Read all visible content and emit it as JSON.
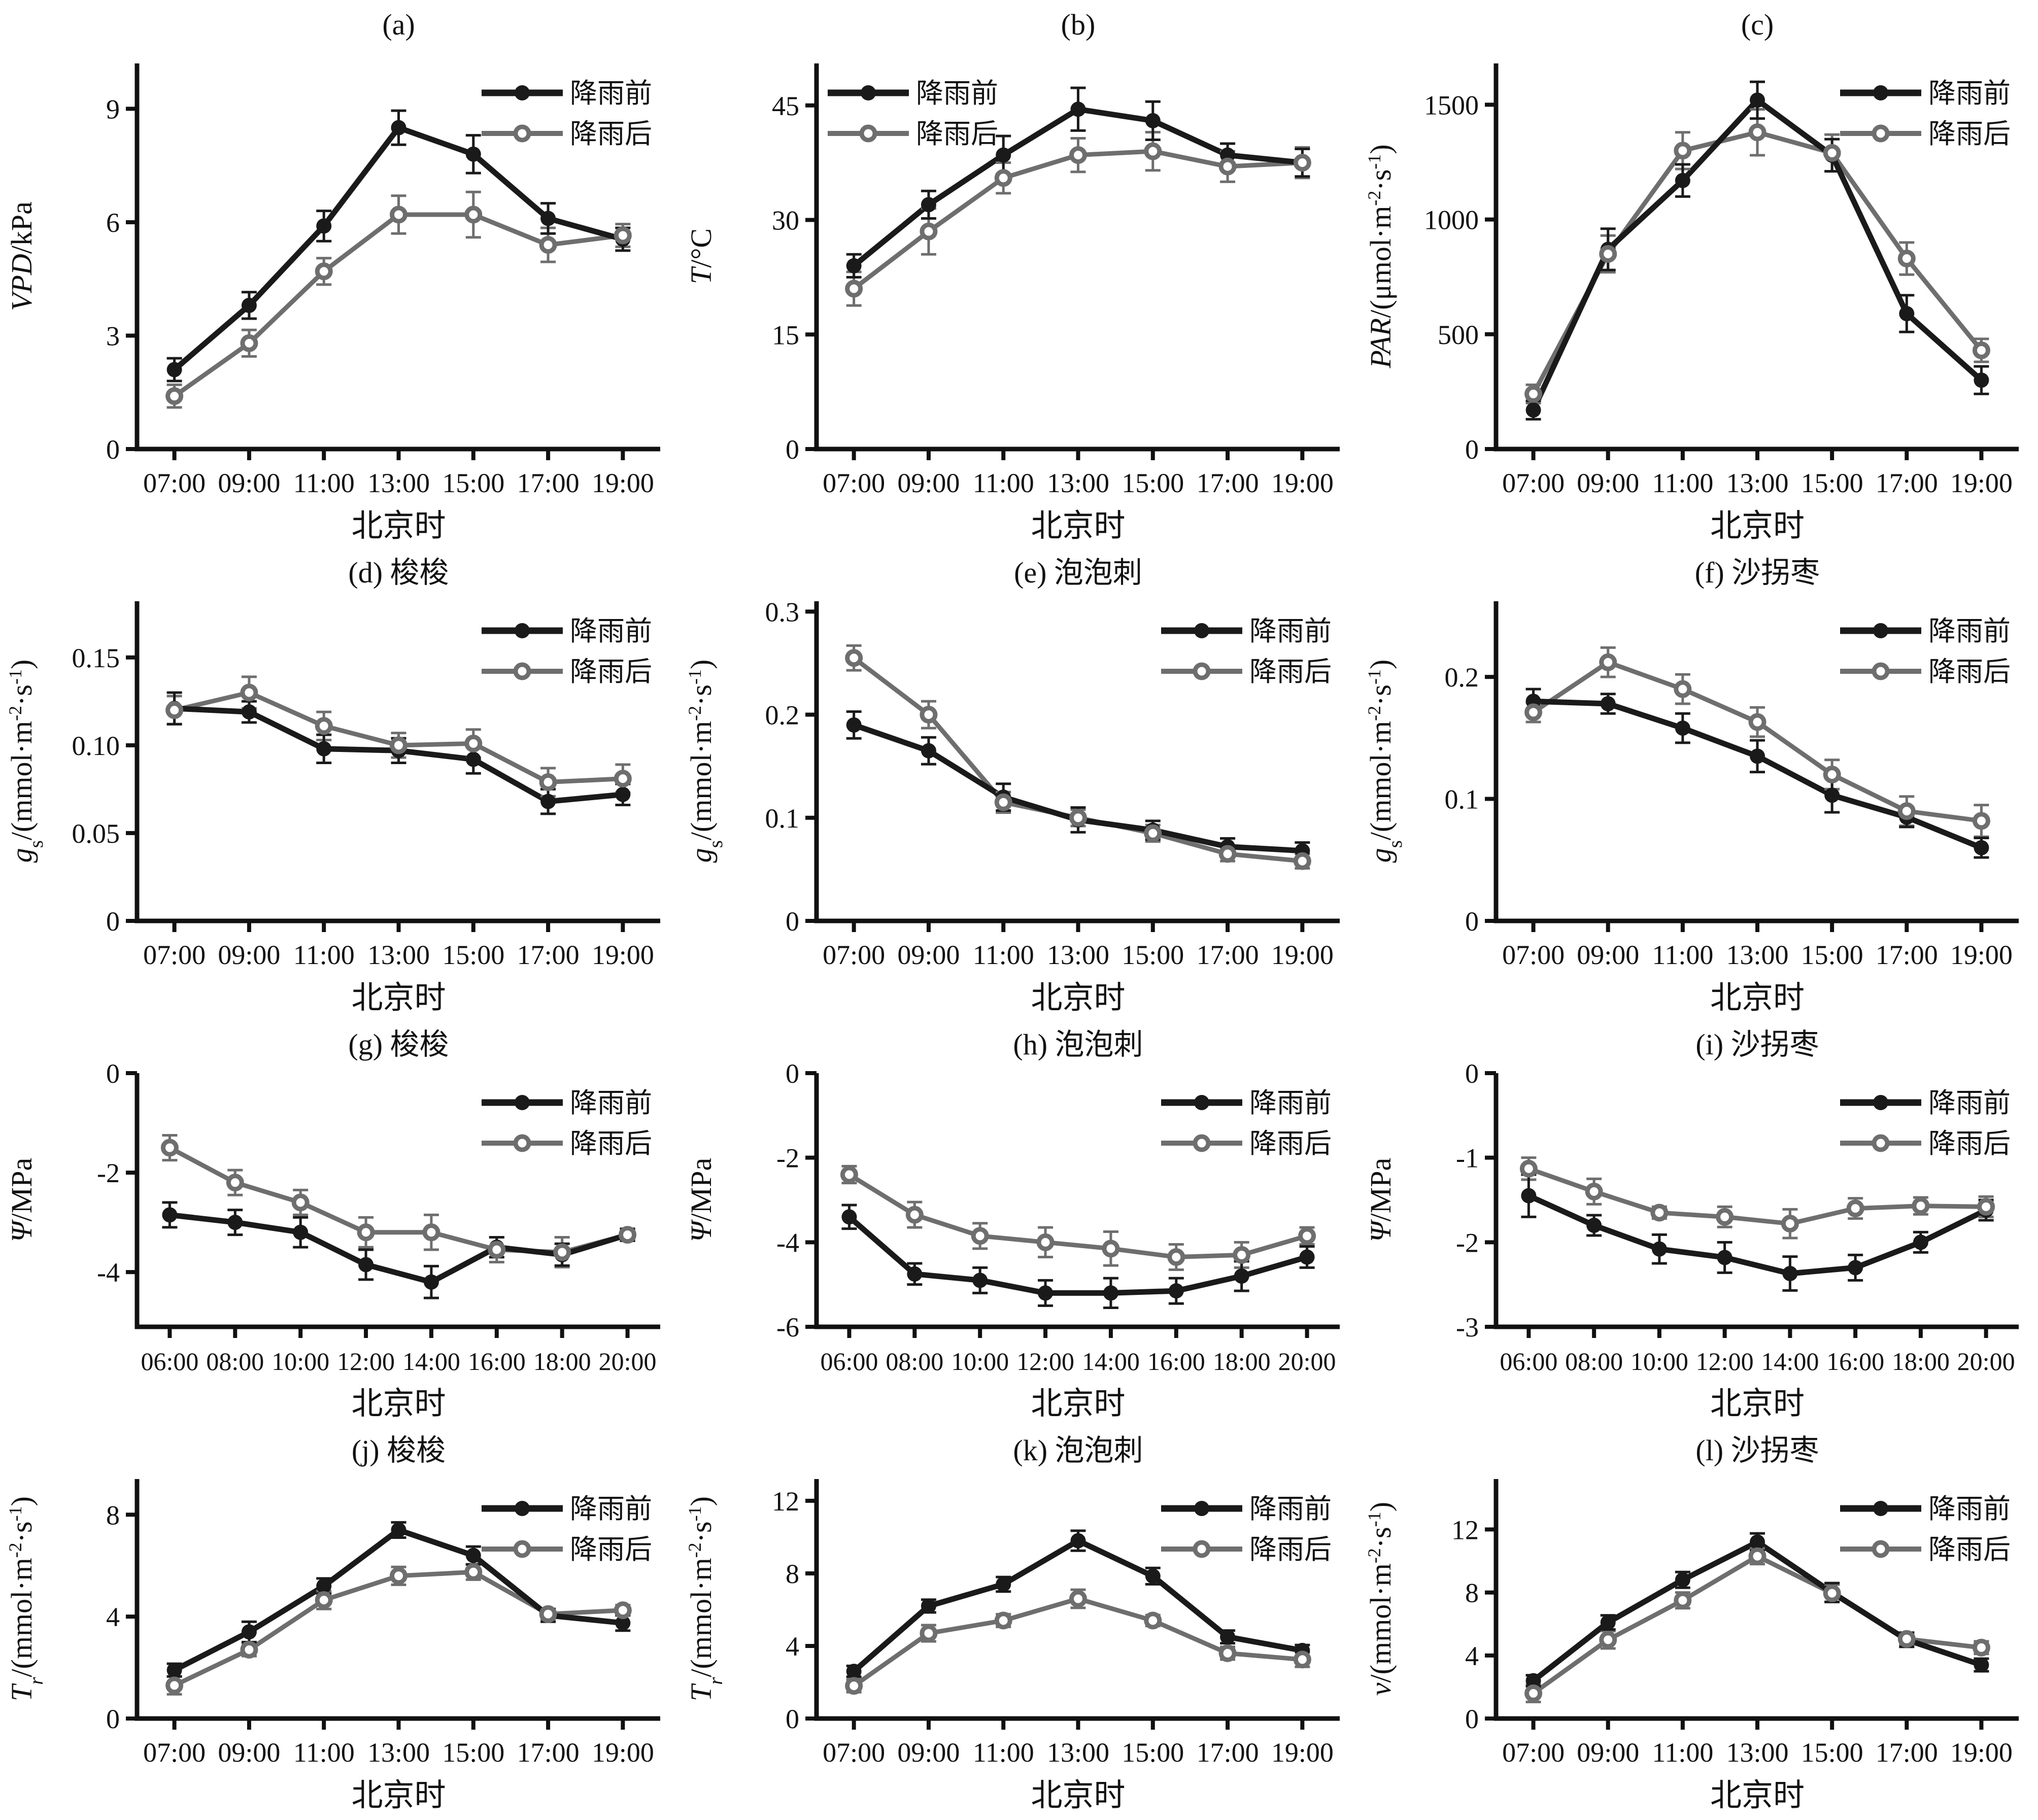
{
  "figure": {
    "background": "#ffffff",
    "axis_color": "#111111",
    "xlabel": "北京时",
    "legend": {
      "pre_label": "降雨前",
      "post_label": "降雨后"
    },
    "colors": {
      "pre": "#1a1a1a",
      "post": "#6e6e6e",
      "marker_fill_open": "#ffffff"
    }
  },
  "chart_data": [
    {
      "panel": "a",
      "type": "line",
      "title": "(a)",
      "ylabel": "VPD/kPa",
      "ylabel_rich": [
        {
          "t": "VPD",
          "i": 1
        },
        {
          "t": "/kPa"
        }
      ],
      "xlabel": "北京时",
      "x": [
        "07:00",
        "09:00",
        "11:00",
        "13:00",
        "15:00",
        "17:00",
        "19:00"
      ],
      "yticks": [
        0,
        3,
        6,
        9
      ],
      "ytick_labels": [
        "0",
        "3",
        "6",
        "9"
      ],
      "ylim": [
        0,
        10.2
      ],
      "legend_position": "top-right",
      "series": [
        {
          "key": "pre",
          "name": "降雨前",
          "values": [
            2.1,
            3.8,
            5.9,
            8.5,
            7.8,
            6.1,
            5.55
          ],
          "errors": [
            0.3,
            0.35,
            0.4,
            0.45,
            0.5,
            0.4,
            0.3
          ]
        },
        {
          "key": "post",
          "name": "降雨后",
          "values": [
            1.4,
            2.8,
            4.7,
            6.2,
            6.2,
            5.4,
            5.65
          ],
          "errors": [
            0.3,
            0.35,
            0.35,
            0.5,
            0.6,
            0.45,
            0.3
          ]
        }
      ]
    },
    {
      "panel": "b",
      "type": "line",
      "title": "(b)",
      "ylabel": "T/°C",
      "ylabel_rich": [
        {
          "t": "T",
          "i": 1
        },
        {
          "t": "/°C"
        }
      ],
      "xlabel": "北京时",
      "x": [
        "07:00",
        "09:00",
        "11:00",
        "13:00",
        "15:00",
        "17:00",
        "19:00"
      ],
      "yticks": [
        0,
        15,
        30,
        45
      ],
      "ytick_labels": [
        "0",
        "15",
        "30",
        "45"
      ],
      "ylim": [
        0,
        50.5
      ],
      "legend_position": "top-left",
      "series": [
        {
          "key": "pre",
          "name": "降雨前",
          "values": [
            24,
            32,
            38.5,
            44.5,
            43,
            38.5,
            37.5
          ],
          "errors": [
            1.5,
            1.8,
            2.5,
            2.8,
            2.5,
            1.5,
            1.8
          ]
        },
        {
          "key": "post",
          "name": "降雨后",
          "values": [
            21,
            28.5,
            35.5,
            38.5,
            39,
            37,
            37.5
          ],
          "errors": [
            2.2,
            3.0,
            2.0,
            2.2,
            2.5,
            2.0,
            2.0
          ]
        }
      ]
    },
    {
      "panel": "c",
      "type": "line",
      "title": "(c)",
      "ylabel": "PAR/(μmol·m⁻²·s⁻¹)",
      "ylabel_rich": [
        {
          "t": "PAR",
          "i": 1
        },
        {
          "t": "/(μmol·m"
        },
        {
          "t": "-2",
          "sup": 1
        },
        {
          "t": "·s"
        },
        {
          "t": "-1",
          "sup": 1
        },
        {
          "t": ")"
        }
      ],
      "xlabel": "北京时",
      "x": [
        "07:00",
        "09:00",
        "11:00",
        "13:00",
        "15:00",
        "17:00",
        "19:00"
      ],
      "yticks": [
        0,
        500,
        1000,
        1500
      ],
      "ytick_labels": [
        "0",
        "500",
        "1000",
        "1500"
      ],
      "ylim": [
        0,
        1680
      ],
      "legend_position": "top-right",
      "series": [
        {
          "key": "pre",
          "name": "降雨前",
          "values": [
            170,
            870,
            1170,
            1520,
            1280,
            590,
            300
          ],
          "errors": [
            40,
            90,
            70,
            80,
            70,
            80,
            60
          ]
        },
        {
          "key": "post",
          "name": "降雨后",
          "values": [
            240,
            850,
            1300,
            1380,
            1290,
            830,
            430
          ],
          "errors": [
            40,
            80,
            80,
            100,
            80,
            70,
            50
          ]
        }
      ]
    },
    {
      "panel": "d",
      "type": "line",
      "title": "(d) 梭梭",
      "ylabel": "gs/(mmol·m⁻²·s⁻¹)",
      "ylabel_rich": [
        {
          "t": "g",
          "i": 1
        },
        {
          "t": "s",
          "sub": 1
        },
        {
          "t": "/(mmol·m"
        },
        {
          "t": "-2",
          "sup": 1
        },
        {
          "t": "·s"
        },
        {
          "t": "-1",
          "sup": 1
        },
        {
          "t": ")"
        }
      ],
      "xlabel": "北京时",
      "x": [
        "07:00",
        "09:00",
        "11:00",
        "13:00",
        "15:00",
        "17:00",
        "19:00"
      ],
      "yticks": [
        0,
        0.05,
        0.1,
        0.15
      ],
      "ytick_labels": [
        "0",
        "0.05",
        "0.10",
        "0.15"
      ],
      "ylim": [
        0,
        0.182
      ],
      "legend_position": "top-right",
      "series": [
        {
          "key": "pre",
          "name": "降雨前",
          "values": [
            0.121,
            0.119,
            0.098,
            0.097,
            0.092,
            0.068,
            0.072
          ],
          "errors": [
            0.009,
            0.006,
            0.008,
            0.007,
            0.008,
            0.007,
            0.006
          ]
        },
        {
          "key": "post",
          "name": "降雨后",
          "values": [
            0.12,
            0.13,
            0.111,
            0.1,
            0.101,
            0.079,
            0.081
          ],
          "errors": [
            0.008,
            0.009,
            0.008,
            0.007,
            0.008,
            0.008,
            0.008
          ]
        }
      ]
    },
    {
      "panel": "e",
      "type": "line",
      "title": "(e) 泡泡刺",
      "ylabel": "gs/(mmol·m⁻²·s⁻¹)",
      "ylabel_rich": [
        {
          "t": "g",
          "i": 1
        },
        {
          "t": "s",
          "sub": 1
        },
        {
          "t": "/(mmol·m"
        },
        {
          "t": "-2",
          "sup": 1
        },
        {
          "t": "·s"
        },
        {
          "t": "-1",
          "sup": 1
        },
        {
          "t": ")"
        }
      ],
      "xlabel": "北京时",
      "x": [
        "07:00",
        "09:00",
        "11:00",
        "13:00",
        "15:00",
        "17:00",
        "19:00"
      ],
      "yticks": [
        0,
        0.1,
        0.2,
        0.3
      ],
      "ytick_labels": [
        "0",
        "0.1",
        "0.2",
        "0.3"
      ],
      "ylim": [
        0,
        0.31
      ],
      "legend_position": "top-right",
      "series": [
        {
          "key": "pre",
          "name": "降雨前",
          "values": [
            0.19,
            0.165,
            0.12,
            0.098,
            0.088,
            0.072,
            0.068
          ],
          "errors": [
            0.013,
            0.013,
            0.013,
            0.012,
            0.009,
            0.008,
            0.008
          ]
        },
        {
          "key": "post",
          "name": "降雨后",
          "values": [
            0.255,
            0.2,
            0.115,
            0.1,
            0.085,
            0.065,
            0.058
          ],
          "errors": [
            0.012,
            0.013,
            0.01,
            0.008,
            0.008,
            0.007,
            0.007
          ]
        }
      ]
    },
    {
      "panel": "f",
      "type": "line",
      "title": "(f) 沙拐枣",
      "ylabel": "gs/(mmol·m⁻²·s⁻¹)",
      "ylabel_rich": [
        {
          "t": "g",
          "i": 1
        },
        {
          "t": "s",
          "sub": 1
        },
        {
          "t": "/(mmol·m"
        },
        {
          "t": "-2",
          "sup": 1
        },
        {
          "t": "·s"
        },
        {
          "t": "-1",
          "sup": 1
        },
        {
          "t": ")"
        }
      ],
      "xlabel": "北京时",
      "x": [
        "07:00",
        "09:00",
        "11:00",
        "13:00",
        "15:00",
        "17:00",
        "19:00"
      ],
      "yticks": [
        0,
        0.1,
        0.2
      ],
      "ytick_labels": [
        "0",
        "0.1",
        "0.2"
      ],
      "ylim": [
        0,
        0.262
      ],
      "legend_position": "top-right",
      "series": [
        {
          "key": "pre",
          "name": "降雨前",
          "values": [
            0.18,
            0.178,
            0.158,
            0.135,
            0.103,
            0.085,
            0.06
          ],
          "errors": [
            0.01,
            0.008,
            0.012,
            0.013,
            0.014,
            0.008,
            0.008
          ]
        },
        {
          "key": "post",
          "name": "降雨后",
          "values": [
            0.171,
            0.212,
            0.19,
            0.163,
            0.12,
            0.09,
            0.082
          ],
          "errors": [
            0.008,
            0.012,
            0.012,
            0.012,
            0.012,
            0.012,
            0.013
          ]
        }
      ]
    },
    {
      "panel": "g",
      "type": "line",
      "title": "(g) 梭梭",
      "ylabel": "Ψ/MPa",
      "ylabel_rich": [
        {
          "t": "Ψ",
          "i": 1
        },
        {
          "t": "/MPa"
        }
      ],
      "xlabel": "北京时",
      "x": [
        "06:00",
        "08:00",
        "10:00",
        "12:00",
        "14:00",
        "16:00",
        "18:00",
        "20:00"
      ],
      "yticks": [
        0,
        -2,
        -4
      ],
      "ytick_labels": [
        "0",
        "-2",
        "-4"
      ],
      "ylim": [
        -5.1,
        0
      ],
      "legend_position": "top-right",
      "series": [
        {
          "key": "pre",
          "name": "降雨前",
          "values": [
            -2.85,
            -3.0,
            -3.2,
            -3.85,
            -4.2,
            -3.5,
            -3.65,
            -3.25
          ],
          "errors": [
            0.25,
            0.25,
            0.3,
            0.3,
            0.32,
            0.2,
            0.22,
            0.12
          ]
        },
        {
          "key": "post",
          "name": "降雨后",
          "values": [
            -1.5,
            -2.2,
            -2.6,
            -3.2,
            -3.2,
            -3.55,
            -3.6,
            -3.25
          ],
          "errors": [
            0.25,
            0.25,
            0.25,
            0.3,
            0.35,
            0.25,
            0.3,
            0.12
          ]
        }
      ]
    },
    {
      "panel": "h",
      "type": "line",
      "title": "(h) 泡泡刺",
      "ylabel": "Ψ/MPa",
      "ylabel_rich": [
        {
          "t": "Ψ",
          "i": 1
        },
        {
          "t": "/MPa"
        }
      ],
      "xlabel": "北京时",
      "x": [
        "06:00",
        "08:00",
        "10:00",
        "12:00",
        "14:00",
        "16:00",
        "18:00",
        "20:00"
      ],
      "yticks": [
        0,
        -2,
        -4,
        -6
      ],
      "ytick_labels": [
        "0",
        "-2",
        "-4",
        "-6"
      ],
      "ylim": [
        -6,
        0
      ],
      "legend_position": "top-right",
      "series": [
        {
          "key": "pre",
          "name": "降雨前",
          "values": [
            -3.4,
            -4.75,
            -4.9,
            -5.2,
            -5.2,
            -5.15,
            -4.8,
            -4.35
          ],
          "errors": [
            0.28,
            0.25,
            0.3,
            0.3,
            0.35,
            0.3,
            0.35,
            0.25
          ]
        },
        {
          "key": "post",
          "name": "降雨后",
          "values": [
            -2.4,
            -3.35,
            -3.85,
            -4.0,
            -4.15,
            -4.35,
            -4.3,
            -3.85
          ],
          "errors": [
            0.2,
            0.3,
            0.3,
            0.35,
            0.4,
            0.3,
            0.3,
            0.2
          ]
        }
      ]
    },
    {
      "panel": "i",
      "type": "line",
      "title": "(i) 沙拐枣",
      "ylabel": "Ψ/MPa",
      "ylabel_rich": [
        {
          "t": "Ψ",
          "i": 1
        },
        {
          "t": "/MPa"
        }
      ],
      "xlabel": "北京时",
      "x": [
        "06:00",
        "08:00",
        "10:00",
        "12:00",
        "14:00",
        "16:00",
        "18:00",
        "20:00"
      ],
      "yticks": [
        0,
        -1,
        -2,
        -3
      ],
      "ytick_labels": [
        "0",
        "-1",
        "-2",
        "-3"
      ],
      "ylim": [
        -3,
        0
      ],
      "legend_position": "top-right",
      "series": [
        {
          "key": "pre",
          "name": "降雨前",
          "values": [
            -1.45,
            -1.8,
            -2.08,
            -2.18,
            -2.37,
            -2.3,
            -2.0,
            -1.62
          ],
          "errors": [
            0.25,
            0.12,
            0.17,
            0.18,
            0.2,
            0.15,
            0.12,
            0.12
          ]
        },
        {
          "key": "post",
          "name": "降雨后",
          "values": [
            -1.13,
            -1.4,
            -1.65,
            -1.7,
            -1.78,
            -1.6,
            -1.57,
            -1.58
          ],
          "errors": [
            0.13,
            0.15,
            0.07,
            0.12,
            0.17,
            0.12,
            0.1,
            0.12
          ]
        }
      ]
    },
    {
      "panel": "j",
      "type": "line",
      "title": "(j) 梭梭",
      "ylabel": "Tr/(mmol·m⁻²·s⁻¹)",
      "ylabel_rich": [
        {
          "t": "T",
          "i": 1
        },
        {
          "t": "r",
          "sub": 1,
          "i": 1
        },
        {
          "t": "/(mmol·m"
        },
        {
          "t": "-2",
          "sup": 1
        },
        {
          "t": "·s"
        },
        {
          "t": "-1",
          "sup": 1
        },
        {
          "t": ")"
        }
      ],
      "xlabel": "北京时",
      "x": [
        "07:00",
        "09:00",
        "11:00",
        "13:00",
        "15:00",
        "17:00",
        "19:00"
      ],
      "yticks": [
        0,
        4,
        8
      ],
      "ytick_labels": [
        "0",
        "4",
        "8"
      ],
      "ylim": [
        0,
        9.4
      ],
      "legend_position": "top-right",
      "series": [
        {
          "key": "pre",
          "name": "降雨前",
          "values": [
            1.9,
            3.4,
            5.2,
            7.4,
            6.4,
            4.05,
            3.75
          ],
          "errors": [
            0.25,
            0.4,
            0.3,
            0.3,
            0.35,
            0.25,
            0.3
          ]
        },
        {
          "key": "post",
          "name": "降雨后",
          "values": [
            1.3,
            2.7,
            4.65,
            5.6,
            5.75,
            4.1,
            4.25
          ],
          "errors": [
            0.35,
            0.25,
            0.35,
            0.35,
            0.3,
            0.2,
            0.2
          ]
        }
      ]
    },
    {
      "panel": "k",
      "type": "line",
      "title": "(k) 泡泡刺",
      "ylabel": "Tr/(mmol·m⁻²·s⁻¹)",
      "ylabel_rich": [
        {
          "t": "T",
          "i": 1
        },
        {
          "t": "r",
          "sub": 1,
          "i": 1
        },
        {
          "t": "/(mmol·m"
        },
        {
          "t": "-2",
          "sup": 1
        },
        {
          "t": "·s"
        },
        {
          "t": "-1",
          "sup": 1
        },
        {
          "t": ")"
        }
      ],
      "xlabel": "北京时",
      "x": [
        "07:00",
        "09:00",
        "11:00",
        "13:00",
        "15:00",
        "17:00",
        "19:00"
      ],
      "yticks": [
        0,
        4,
        8,
        12
      ],
      "ytick_labels": [
        "0",
        "4",
        "8",
        "12"
      ],
      "ylim": [
        0,
        13.2
      ],
      "legend_position": "top-right",
      "series": [
        {
          "key": "pre",
          "name": "降雨前",
          "values": [
            2.6,
            6.2,
            7.4,
            9.8,
            7.85,
            4.5,
            3.75
          ],
          "errors": [
            0.3,
            0.35,
            0.4,
            0.55,
            0.45,
            0.35,
            0.3
          ]
        },
        {
          "key": "post",
          "name": "降雨后",
          "values": [
            1.8,
            4.7,
            5.4,
            6.6,
            5.4,
            3.6,
            3.25
          ],
          "errors": [
            0.35,
            0.45,
            0.35,
            0.5,
            0.3,
            0.35,
            0.4
          ]
        }
      ]
    },
    {
      "panel": "l",
      "type": "line",
      "title": "(l) 沙拐枣",
      "ylabel": "v/(mmol·m⁻²·s⁻¹)",
      "ylabel_rich": [
        {
          "t": "v",
          "i": 1
        },
        {
          "t": "/(mmol·m"
        },
        {
          "t": "-2",
          "sup": 1
        },
        {
          "t": "·s"
        },
        {
          "t": "-1",
          "sup": 1
        },
        {
          "t": ")"
        }
      ],
      "xlabel": "北京时",
      "x": [
        "07:00",
        "09:00",
        "11:00",
        "13:00",
        "15:00",
        "17:00",
        "19:00"
      ],
      "yticks": [
        0,
        4,
        8,
        12
      ],
      "ytick_labels": [
        "0",
        "4",
        "8",
        "12"
      ],
      "ylim": [
        0,
        15.2
      ],
      "legend_position": "top-right",
      "series": [
        {
          "key": "pre",
          "name": "降雨前",
          "values": [
            2.4,
            6.1,
            8.8,
            11.2,
            8.0,
            5.0,
            3.4
          ],
          "errors": [
            0.35,
            0.45,
            0.5,
            0.55,
            0.6,
            0.45,
            0.4
          ]
        },
        {
          "key": "post",
          "name": "降雨后",
          "values": [
            1.6,
            5.0,
            7.5,
            10.3,
            7.95,
            5.05,
            4.5
          ],
          "errors": [
            0.55,
            0.55,
            0.5,
            0.5,
            0.55,
            0.4,
            0.4
          ]
        }
      ]
    }
  ]
}
